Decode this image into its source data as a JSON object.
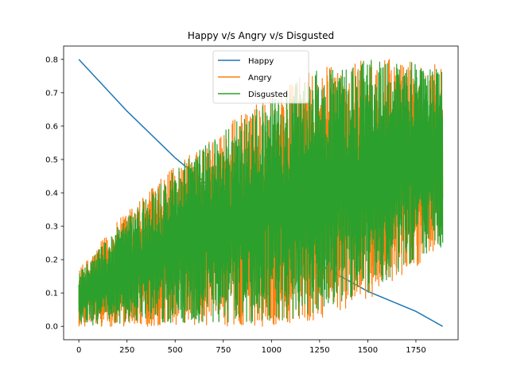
{
  "chart_data": {
    "type": "line",
    "title": "Happy v/s Angry v/s Disgusted",
    "xlabel": "",
    "ylabel": "",
    "xlim": [
      -79,
      1969
    ],
    "ylim": [
      -0.04,
      0.84
    ],
    "xticks": [
      0,
      250,
      500,
      750,
      1000,
      1250,
      1500,
      1750
    ],
    "yticks": [
      0.0,
      0.1,
      0.2,
      0.3,
      0.4,
      0.5,
      0.6,
      0.7,
      0.8
    ],
    "xtick_labels": [
      "0",
      "250",
      "500",
      "750",
      "1000",
      "1250",
      "1500",
      "1750"
    ],
    "ytick_labels": [
      "0.0",
      "0.1",
      "0.2",
      "0.3",
      "0.4",
      "0.5",
      "0.6",
      "0.7",
      "0.8"
    ],
    "grid": false,
    "legend_position": "top-center",
    "n_points": 1890,
    "series": [
      {
        "name": "Happy",
        "color": "#1f77b4",
        "trend_x": [
          0,
          250,
          500,
          750,
          1000,
          1250,
          1500,
          1750,
          1889
        ],
        "trend_y": [
          0.8,
          0.645,
          0.505,
          0.385,
          0.275,
          0.185,
          0.105,
          0.045,
          0.0
        ]
      },
      {
        "name": "Angry",
        "color": "#ff7f0e",
        "noisy_envelope": {
          "x": [
            0,
            250,
            500,
            750,
            1000,
            1250,
            1500,
            1750,
            1889
          ],
          "low": [
            0.0,
            0.0,
            0.0,
            0.0,
            0.0,
            0.02,
            0.08,
            0.18,
            0.22
          ],
          "high": [
            0.17,
            0.35,
            0.48,
            0.6,
            0.7,
            0.78,
            0.8,
            0.8,
            0.8
          ]
        }
      },
      {
        "name": "Disgusted",
        "color": "#2ca02c",
        "noisy_envelope": {
          "x": [
            0,
            250,
            500,
            750,
            1000,
            1250,
            1500,
            1750,
            1889
          ],
          "low": [
            0.0,
            0.01,
            0.01,
            0.01,
            0.01,
            0.04,
            0.1,
            0.2,
            0.24
          ],
          "high": [
            0.16,
            0.33,
            0.47,
            0.59,
            0.69,
            0.77,
            0.8,
            0.79,
            0.79
          ]
        }
      }
    ]
  }
}
